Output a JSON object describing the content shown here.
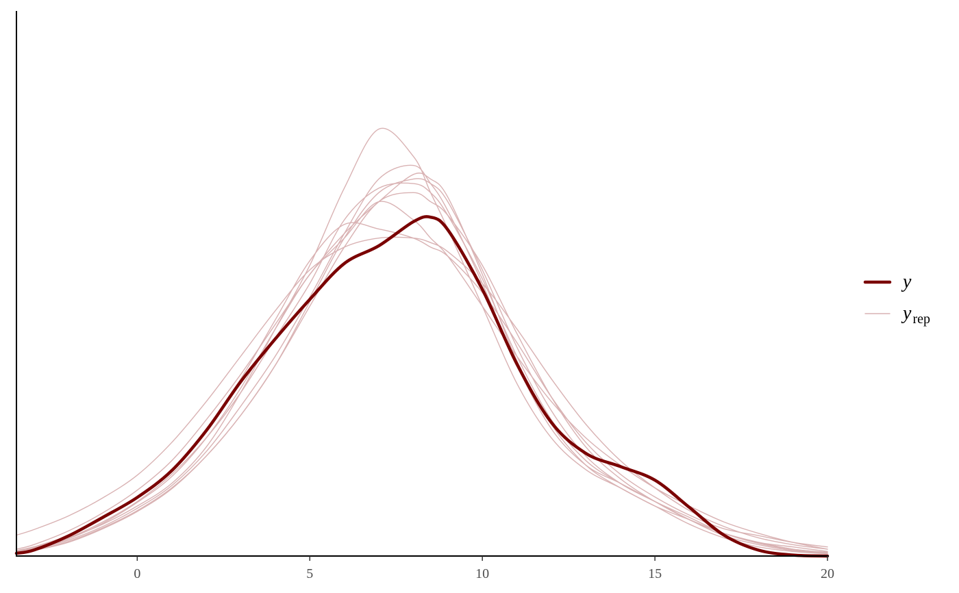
{
  "chart_data": {
    "type": "line",
    "title": "",
    "xlabel": "",
    "ylabel": "",
    "xlim": [
      -3.5,
      20
    ],
    "ylim": [
      0,
      0.12
    ],
    "x_ticks": [
      "0",
      "5",
      "10",
      "15",
      "20"
    ],
    "x_tick_values": [
      0,
      5,
      10,
      15,
      20
    ],
    "y_axis_ticks_shown": false,
    "grid": false,
    "legend_position": "right",
    "legend": [
      {
        "label": "y",
        "subscript": ""
      },
      {
        "label": "y",
        "subscript": "rep"
      }
    ],
    "x": [
      -3.5,
      -3,
      -2,
      -1,
      0,
      1,
      2,
      3,
      4,
      5,
      6,
      7,
      8,
      8.5,
      9,
      10,
      11,
      12,
      13,
      14,
      15,
      16,
      17,
      18,
      19,
      20
    ],
    "series": [
      {
        "name": "y",
        "role": "observed",
        "color": "#7a0000",
        "values": [
          0.0006,
          0.0013,
          0.0044,
          0.0085,
          0.0129,
          0.0188,
          0.0276,
          0.0384,
          0.0478,
          0.0565,
          0.0644,
          0.0683,
          0.0736,
          0.0746,
          0.0718,
          0.0587,
          0.0423,
          0.0294,
          0.0226,
          0.0197,
          0.0167,
          0.0107,
          0.0046,
          0.0013,
          0.0002,
          0.0
        ]
      },
      {
        "name": "y",
        "role": "replicate",
        "color": "#d9b2b3",
        "values": [
          0.0012,
          0.002,
          0.004,
          0.007,
          0.011,
          0.016,
          0.024,
          0.036,
          0.05,
          0.064,
          0.081,
          0.094,
          0.088,
          0.08,
          0.072,
          0.055,
          0.038,
          0.026,
          0.019,
          0.015,
          0.011,
          0.008,
          0.005,
          0.003,
          0.002,
          0.001
        ]
      },
      {
        "name": "y",
        "role": "replicate",
        "color": "#d9b2b3",
        "values": [
          0.0008,
          0.0015,
          0.0035,
          0.0065,
          0.0105,
          0.0155,
          0.023,
          0.033,
          0.044,
          0.057,
          0.071,
          0.083,
          0.086,
          0.082,
          0.076,
          0.06,
          0.042,
          0.028,
          0.02,
          0.016,
          0.012,
          0.008,
          0.005,
          0.003,
          0.0015,
          0.0008
        ]
      },
      {
        "name": "y",
        "role": "replicate",
        "color": "#d9b2b3",
        "values": [
          0.001,
          0.0018,
          0.004,
          0.0075,
          0.012,
          0.018,
          0.026,
          0.036,
          0.048,
          0.06,
          0.074,
          0.081,
          0.082,
          0.08,
          0.075,
          0.061,
          0.044,
          0.03,
          0.021,
          0.016,
          0.012,
          0.008,
          0.0045,
          0.0025,
          0.0012,
          0.0006
        ]
      },
      {
        "name": "y",
        "role": "replicate",
        "color": "#d9b2b3",
        "values": [
          0.0007,
          0.0013,
          0.0032,
          0.0062,
          0.01,
          0.015,
          0.022,
          0.031,
          0.042,
          0.056,
          0.07,
          0.08,
          0.083,
          0.082,
          0.078,
          0.063,
          0.046,
          0.032,
          0.022,
          0.016,
          0.012,
          0.0085,
          0.005,
          0.0028,
          0.0014,
          0.0007
        ]
      },
      {
        "name": "y",
        "role": "replicate",
        "color": "#d9b2b3",
        "values": [
          0.0015,
          0.0025,
          0.0055,
          0.0095,
          0.0145,
          0.021,
          0.03,
          0.04,
          0.051,
          0.062,
          0.071,
          0.078,
          0.084,
          0.083,
          0.079,
          0.062,
          0.043,
          0.029,
          0.02,
          0.015,
          0.011,
          0.007,
          0.004,
          0.002,
          0.001,
          0.0005
        ]
      },
      {
        "name": "y",
        "role": "replicate",
        "color": "#d9b2b3",
        "values": [
          0.0046,
          0.0058,
          0.0088,
          0.0128,
          0.0178,
          0.025,
          0.034,
          0.044,
          0.054,
          0.063,
          0.068,
          0.07,
          0.07,
          0.069,
          0.067,
          0.06,
          0.05,
          0.039,
          0.029,
          0.021,
          0.015,
          0.01,
          0.0065,
          0.004,
          0.0025,
          0.0015
        ]
      },
      {
        "name": "y",
        "role": "replicate",
        "color": "#d9b2b3",
        "values": [
          0.0009,
          0.0016,
          0.0038,
          0.0072,
          0.0118,
          0.0175,
          0.026,
          0.037,
          0.05,
          0.062,
          0.07,
          0.078,
          0.074,
          0.07,
          0.066,
          0.055,
          0.044,
          0.034,
          0.026,
          0.02,
          0.015,
          0.011,
          0.0075,
          0.005,
          0.003,
          0.0015
        ]
      },
      {
        "name": "y",
        "role": "replicate",
        "color": "#d9b2b3",
        "values": [
          0.0011,
          0.002,
          0.0045,
          0.0082,
          0.013,
          0.019,
          0.028,
          0.039,
          0.052,
          0.065,
          0.073,
          0.072,
          0.07,
          0.068,
          0.066,
          0.058,
          0.047,
          0.035,
          0.025,
          0.018,
          0.013,
          0.009,
          0.006,
          0.0045,
          0.003,
          0.002
        ]
      },
      {
        "name": "y",
        "role": "replicate",
        "color": "#d9b2b3",
        "values": [
          0.0006,
          0.0012,
          0.003,
          0.006,
          0.0098,
          0.0148,
          0.022,
          0.031,
          0.042,
          0.055,
          0.068,
          0.078,
          0.08,
          0.078,
          0.075,
          0.064,
          0.049,
          0.035,
          0.024,
          0.017,
          0.012,
          0.008,
          0.005,
          0.003,
          0.0015,
          0.0008
        ]
      }
    ]
  }
}
